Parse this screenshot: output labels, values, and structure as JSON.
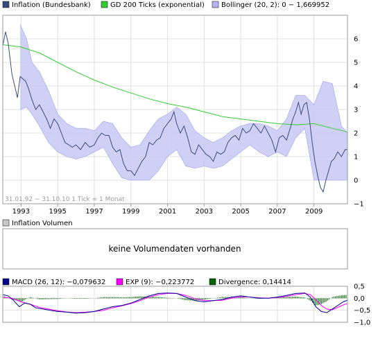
{
  "colors": {
    "price": "#3a4a7a",
    "gd200": "#33cc33",
    "bollinger_fill": "#c8c8f4",
    "bollinger_edge": "#9aa0e8",
    "macd": "#00008b",
    "exp": "#ff00ff",
    "divergence": "#006400",
    "grid": "#e0e0e0",
    "frame": "#999999"
  },
  "legend_main": [
    {
      "label": "Inflation (Bundesbank)",
      "color": "#3a4a7a"
    },
    {
      "label": "GD 200 Ticks (exponential)",
      "color": "#33cc33"
    },
    {
      "label": "Bollinger (20, 2): 0 − 1,669952",
      "color": "#b4b4f0"
    }
  ],
  "period_text": "31.01.92 − 31.10.10   1 Tick = 1 Monat",
  "volume": {
    "legend": "Inflation Volumen",
    "message": "keine Volumendaten vorhanden"
  },
  "legend_macd": [
    {
      "label": "MACD (26, 12): −0,079632",
      "color": "#00008b"
    },
    {
      "label": "EXP (9): −0,223772",
      "color": "#ff00ff"
    },
    {
      "label": "Divergence: 0,14414",
      "color": "#006400"
    }
  ],
  "chart_data": [
    {
      "type": "line",
      "xlim": [
        1992.0,
        2010.83
      ],
      "ylim": [
        -1,
        7
      ],
      "y_ticks": [
        -1,
        0,
        1,
        2,
        3,
        4,
        5,
        6
      ],
      "x_ticks": [
        1993,
        1995,
        1997,
        1999,
        2001,
        2003,
        2005,
        2007,
        2009
      ],
      "x_tick_labels": [
        "1993",
        "1995",
        "1997",
        "1999",
        "2001",
        "2003",
        "2005",
        "2007",
        "2009"
      ],
      "grid": true,
      "legend": "top",
      "series": [
        {
          "name": "Inflation (Bundesbank)",
          "x": [
            1992.0,
            1992.15,
            1992.3,
            1992.5,
            1992.65,
            1992.8,
            1992.95,
            1993.1,
            1993.25,
            1993.4,
            1993.6,
            1993.8,
            1994.0,
            1994.2,
            1994.4,
            1994.6,
            1994.8,
            1995.0,
            1995.2,
            1995.4,
            1995.6,
            1995.8,
            1996.0,
            1996.25,
            1996.5,
            1996.75,
            1997.0,
            1997.2,
            1997.4,
            1997.6,
            1997.8,
            1998.0,
            1998.2,
            1998.4,
            1998.6,
            1998.8,
            1999.0,
            1999.2,
            1999.4,
            1999.6,
            1999.8,
            2000.0,
            2000.2,
            2000.4,
            2000.6,
            2000.8,
            2001.0,
            2001.2,
            2001.35,
            2001.5,
            2001.7,
            2001.9,
            2002.1,
            2002.3,
            2002.5,
            2002.7,
            2002.9,
            2003.1,
            2003.3,
            2003.5,
            2003.7,
            2003.9,
            2004.1,
            2004.3,
            2004.5,
            2004.7,
            2004.9,
            2005.1,
            2005.3,
            2005.5,
            2005.7,
            2005.9,
            2006.1,
            2006.3,
            2006.5,
            2006.7,
            2006.9,
            2007.1,
            2007.3,
            2007.5,
            2007.7,
            2007.85,
            2008.0,
            2008.15,
            2008.3,
            2008.45,
            2008.6,
            2008.75,
            2008.9,
            2009.05,
            2009.2,
            2009.35,
            2009.5,
            2009.65,
            2009.8,
            2009.95,
            2010.1,
            2010.3,
            2010.5,
            2010.7,
            2010.83
          ],
          "y": [
            5.7,
            6.3,
            5.8,
            4.5,
            4.0,
            3.5,
            4.4,
            4.3,
            4.2,
            3.9,
            3.4,
            3.0,
            3.2,
            2.9,
            2.6,
            2.2,
            2.6,
            2.4,
            2.0,
            1.6,
            1.5,
            1.4,
            1.5,
            1.3,
            1.6,
            1.4,
            1.5,
            1.8,
            2.0,
            1.9,
            1.9,
            1.4,
            1.2,
            1.3,
            0.7,
            0.4,
            0.4,
            0.2,
            0.5,
            0.8,
            1.0,
            1.6,
            1.5,
            1.7,
            1.8,
            2.2,
            2.4,
            2.6,
            2.9,
            2.4,
            2.0,
            2.3,
            1.8,
            1.2,
            1.1,
            1.5,
            1.3,
            1.1,
            1.0,
            0.8,
            1.2,
            1.1,
            1.2,
            1.6,
            1.8,
            1.9,
            1.7,
            2.2,
            2.0,
            2.1,
            2.4,
            2.2,
            2.0,
            2.3,
            2.0,
            1.7,
            1.2,
            1.8,
            1.9,
            1.7,
            2.2,
            2.6,
            2.9,
            3.3,
            2.8,
            3.2,
            3.3,
            2.6,
            1.6,
            0.8,
            0.2,
            -0.3,
            -0.5,
            0.0,
            0.4,
            0.8,
            0.9,
            1.2,
            1.0,
            1.3,
            1.3
          ]
        },
        {
          "name": "GD 200 Ticks (exponential)",
          "x": [
            1992.0,
            1993.0,
            1994.0,
            1995.0,
            1996.0,
            1997.0,
            1998.0,
            1999.0,
            2000.0,
            2001.0,
            2002.0,
            2003.0,
            2004.0,
            2005.0,
            2006.0,
            2007.0,
            2008.0,
            2009.0,
            2010.0,
            2010.83
          ],
          "y": [
            5.75,
            5.65,
            5.4,
            5.0,
            4.6,
            4.25,
            3.95,
            3.7,
            3.45,
            3.25,
            3.1,
            2.9,
            2.7,
            2.6,
            2.5,
            2.4,
            2.35,
            2.4,
            2.2,
            2.05
          ]
        },
        {
          "name": "Bollinger (20, 2)",
          "x": [
            1992.95,
            1993.3,
            1993.6,
            1994.0,
            1994.5,
            1995.0,
            1995.5,
            1996.0,
            1996.5,
            1997.0,
            1997.5,
            1998.0,
            1998.5,
            1999.0,
            1999.5,
            2000.0,
            2000.5,
            2001.0,
            2001.5,
            2002.0,
            2002.5,
            2003.0,
            2003.5,
            2004.0,
            2004.5,
            2005.0,
            2005.5,
            2006.0,
            2006.5,
            2007.0,
            2007.5,
            2008.0,
            2008.5,
            2009.0,
            2009.5,
            2010.0,
            2010.5,
            2010.83
          ],
          "upper": [
            6.6,
            6.0,
            5.0,
            4.6,
            3.8,
            2.8,
            2.4,
            2.2,
            2.2,
            2.1,
            2.5,
            2.4,
            1.8,
            1.4,
            1.5,
            2.1,
            2.6,
            2.8,
            3.1,
            2.8,
            2.1,
            1.8,
            1.6,
            1.8,
            2.1,
            2.3,
            2.4,
            2.4,
            2.3,
            2.1,
            2.6,
            3.6,
            3.6,
            3.2,
            4.2,
            4.1,
            2.3,
            2.0
          ],
          "lower": [
            3.0,
            3.1,
            2.8,
            2.3,
            1.6,
            1.2,
            1.0,
            0.9,
            1.0,
            1.2,
            1.4,
            0.7,
            0.1,
            0.0,
            0.0,
            0.0,
            0.4,
            1.0,
            1.3,
            0.6,
            0.5,
            0.6,
            0.5,
            0.6,
            0.9,
            1.2,
            1.5,
            1.2,
            1.0,
            1.2,
            1.0,
            1.8,
            2.2,
            0.0,
            0.0,
            0.0,
            0.0,
            0.0
          ]
        }
      ]
    },
    {
      "type": "line",
      "xlim": [
        1992.0,
        2010.83
      ],
      "ylim": [
        -1.0,
        0.5
      ],
      "y_ticks": [
        -1.0,
        -0.5,
        0.0,
        0.5
      ],
      "y_tick_labels": [
        "−1,0",
        "−0,5",
        "0,0",
        "0,5"
      ],
      "grid": true,
      "legend": "top",
      "series": [
        {
          "name": "MACD (26, 12)",
          "x": [
            1992.0,
            1992.3,
            1992.6,
            1992.9,
            1993.2,
            1993.5,
            1993.8,
            1994.2,
            1994.6,
            1995.0,
            1995.5,
            1996.0,
            1996.5,
            1997.0,
            1997.5,
            1998.0,
            1998.5,
            1999.0,
            1999.5,
            2000.0,
            2000.5,
            2001.0,
            2001.5,
            2002.0,
            2002.5,
            2003.0,
            2003.5,
            2004.0,
            2004.5,
            2005.0,
            2005.5,
            2006.0,
            2006.5,
            2007.0,
            2007.5,
            2008.0,
            2008.5,
            2008.8,
            2009.1,
            2009.4,
            2009.7,
            2010.0,
            2010.3,
            2010.6,
            2010.83
          ],
          "y": [
            0.15,
            0.1,
            -0.1,
            -0.35,
            -0.2,
            -0.25,
            -0.4,
            -0.45,
            -0.5,
            -0.55,
            -0.58,
            -0.62,
            -0.6,
            -0.55,
            -0.45,
            -0.35,
            -0.3,
            -0.2,
            -0.05,
            0.1,
            0.2,
            0.22,
            0.2,
            0.05,
            -0.1,
            -0.15,
            -0.1,
            -0.05,
            0.05,
            0.1,
            0.05,
            0.0,
            0.0,
            0.05,
            0.12,
            0.2,
            0.22,
            0.05,
            -0.35,
            -0.55,
            -0.6,
            -0.45,
            -0.3,
            -0.15,
            -0.08
          ]
        },
        {
          "name": "EXP (9)",
          "x": [
            1992.0,
            1992.5,
            1993.0,
            1993.5,
            1994.0,
            1994.5,
            1995.0,
            1995.5,
            1996.0,
            1996.5,
            1997.0,
            1997.5,
            1998.0,
            1998.5,
            1999.0,
            1999.5,
            2000.0,
            2000.5,
            2001.0,
            2001.5,
            2002.0,
            2002.5,
            2003.0,
            2003.5,
            2004.0,
            2004.5,
            2005.0,
            2005.5,
            2006.0,
            2006.5,
            2007.0,
            2007.5,
            2008.0,
            2008.5,
            2008.8,
            2009.1,
            2009.4,
            2009.7,
            2010.0,
            2010.3,
            2010.6,
            2010.83
          ],
          "y": [
            0.05,
            0.0,
            -0.15,
            -0.25,
            -0.38,
            -0.45,
            -0.52,
            -0.57,
            -0.6,
            -0.58,
            -0.55,
            -0.5,
            -0.4,
            -0.32,
            -0.22,
            -0.1,
            0.05,
            0.15,
            0.2,
            0.2,
            0.12,
            -0.02,
            -0.1,
            -0.1,
            -0.08,
            0.0,
            0.06,
            0.05,
            0.02,
            0.0,
            0.03,
            0.08,
            0.15,
            0.2,
            0.15,
            -0.05,
            -0.3,
            -0.45,
            -0.48,
            -0.38,
            -0.28,
            -0.22
          ]
        },
        {
          "name": "Divergence",
          "x": [
            1992.0,
            1992.5,
            1993.0,
            1993.5,
            1994.0,
            1994.5,
            1995.0,
            1995.5,
            1996.0,
            1996.5,
            1997.0,
            1997.5,
            1998.0,
            1998.5,
            1999.0,
            1999.5,
            2000.0,
            2000.5,
            2001.0,
            2001.5,
            2002.0,
            2002.5,
            2003.0,
            2003.5,
            2004.0,
            2004.5,
            2005.0,
            2005.5,
            2006.0,
            2006.5,
            2007.0,
            2007.5,
            2008.0,
            2008.5,
            2008.8,
            2009.1,
            2009.4,
            2009.7,
            2010.0,
            2010.3,
            2010.6,
            2010.83
          ],
          "y": [
            0.1,
            -0.05,
            -0.15,
            0.05,
            -0.05,
            -0.04,
            -0.03,
            0.0,
            -0.02,
            -0.02,
            0.0,
            0.05,
            0.05,
            0.04,
            0.05,
            0.08,
            0.07,
            0.05,
            0.02,
            0.0,
            -0.08,
            -0.1,
            -0.06,
            0.0,
            0.05,
            0.05,
            0.04,
            0.0,
            -0.02,
            0.0,
            0.03,
            0.05,
            0.07,
            0.03,
            -0.1,
            -0.3,
            -0.25,
            -0.12,
            0.05,
            0.1,
            0.13,
            0.14
          ]
        }
      ]
    }
  ]
}
